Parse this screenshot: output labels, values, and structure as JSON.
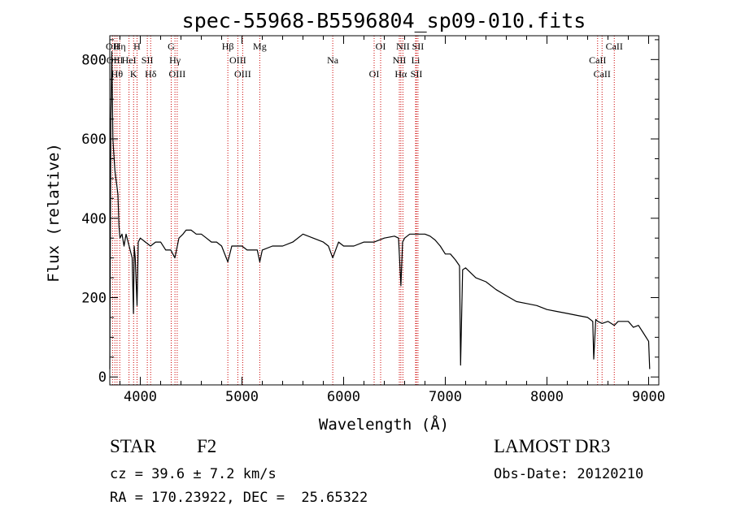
{
  "chart_data": {
    "type": "line",
    "title": "spec-55968-B5596804_sp09-010.fits",
    "xlabel": "Wavelength (Å)",
    "ylabel": "Flux (relative)",
    "xlim": [
      3700,
      9100
    ],
    "ylim": [
      -20,
      860
    ],
    "xticks": [
      4000,
      5000,
      6000,
      7000,
      8000,
      9000
    ],
    "yticks": [
      0,
      200,
      400,
      600,
      800
    ],
    "line_color": "#000000",
    "marker_color": "#cc0000",
    "spectrum": {
      "name": "flux",
      "x": [
        3700,
        3710,
        3720,
        3730,
        3740,
        3750,
        3760,
        3770,
        3780,
        3790,
        3800,
        3820,
        3840,
        3860,
        3880,
        3900,
        3920,
        3933,
        3940,
        3950,
        3968,
        3980,
        4000,
        4050,
        4101,
        4150,
        4200,
        4250,
        4300,
        4340,
        4380,
        4420,
        4450,
        4500,
        4550,
        4600,
        4650,
        4700,
        4750,
        4800,
        4861,
        4900,
        4950,
        5000,
        5050,
        5100,
        5150,
        5175,
        5200,
        5300,
        5400,
        5500,
        5600,
        5700,
        5800,
        5850,
        5893,
        5950,
        6000,
        6100,
        6200,
        6300,
        6400,
        6500,
        6540,
        6563,
        6580,
        6600,
        6650,
        6700,
        6750,
        6800,
        6850,
        6900,
        6950,
        7000,
        7050,
        7100,
        7140,
        7150,
        7170,
        7200,
        7300,
        7400,
        7500,
        7600,
        7700,
        7800,
        7900,
        8000,
        8100,
        8200,
        8300,
        8400,
        8450,
        8460,
        8480,
        8500,
        8542,
        8600,
        8662,
        8700,
        8800,
        8850,
        8900,
        8950,
        9000,
        9010
      ],
      "y": [
        20,
        650,
        820,
        600,
        560,
        520,
        500,
        480,
        460,
        380,
        350,
        360,
        330,
        360,
        340,
        320,
        300,
        160,
        330,
        300,
        180,
        340,
        350,
        340,
        330,
        340,
        340,
        320,
        320,
        300,
        350,
        360,
        370,
        370,
        360,
        360,
        350,
        340,
        340,
        330,
        290,
        330,
        330,
        330,
        320,
        320,
        320,
        290,
        320,
        330,
        330,
        340,
        360,
        350,
        340,
        330,
        300,
        340,
        330,
        330,
        340,
        340,
        350,
        355,
        350,
        230,
        340,
        350,
        360,
        360,
        360,
        360,
        355,
        345,
        330,
        310,
        310,
        295,
        280,
        30,
        270,
        275,
        250,
        240,
        220,
        205,
        190,
        185,
        180,
        170,
        165,
        160,
        155,
        150,
        140,
        45,
        145,
        140,
        135,
        140,
        130,
        140,
        140,
        125,
        130,
        110,
        90,
        20
      ]
    },
    "line_markers": [
      {
        "wavelength": 3727,
        "label": "OII"
      },
      {
        "wavelength": 3750,
        "label": "OIII"
      },
      {
        "wavelength": 3771,
        "label": "Hθ"
      },
      {
        "wavelength": 3798,
        "label": "Hη"
      },
      {
        "wavelength": 3889,
        "label": "HeI"
      },
      {
        "wavelength": 3934,
        "label": "K"
      },
      {
        "wavelength": 3968,
        "label": "H"
      },
      {
        "wavelength": 4069,
        "label": "SII"
      },
      {
        "wavelength": 4102,
        "label": "Hδ"
      },
      {
        "wavelength": 4304,
        "label": "G"
      },
      {
        "wavelength": 4341,
        "label": "Hγ"
      },
      {
        "wavelength": 4363,
        "label": "OIII"
      },
      {
        "wavelength": 4861,
        "label": "Hβ"
      },
      {
        "wavelength": 4959,
        "label": "OIII"
      },
      {
        "wavelength": 5007,
        "label": "OIII"
      },
      {
        "wavelength": 5175,
        "label": "Mg"
      },
      {
        "wavelength": 5893,
        "label": "Na"
      },
      {
        "wavelength": 6300,
        "label": "OI"
      },
      {
        "wavelength": 6364,
        "label": "OI"
      },
      {
        "wavelength": 6548,
        "label": "NII"
      },
      {
        "wavelength": 6563,
        "label": "Hα"
      },
      {
        "wavelength": 6583,
        "label": "NII"
      },
      {
        "wavelength": 6708,
        "label": "Li"
      },
      {
        "wavelength": 6716,
        "label": "SII"
      },
      {
        "wavelength": 6731,
        "label": "SII"
      },
      {
        "wavelength": 8498,
        "label": "CaII"
      },
      {
        "wavelength": 8542,
        "label": "CaII"
      },
      {
        "wavelength": 8662,
        "label": "CaII"
      }
    ]
  },
  "info": {
    "object_type": "STAR",
    "object_class": "F2",
    "survey": "LAMOST DR3",
    "cz": "cz = 39.6 ± 7.2 km/s",
    "obs_date": "Obs-Date: 20120210",
    "radec": "RA = 170.23922, DEC =  25.65322"
  }
}
